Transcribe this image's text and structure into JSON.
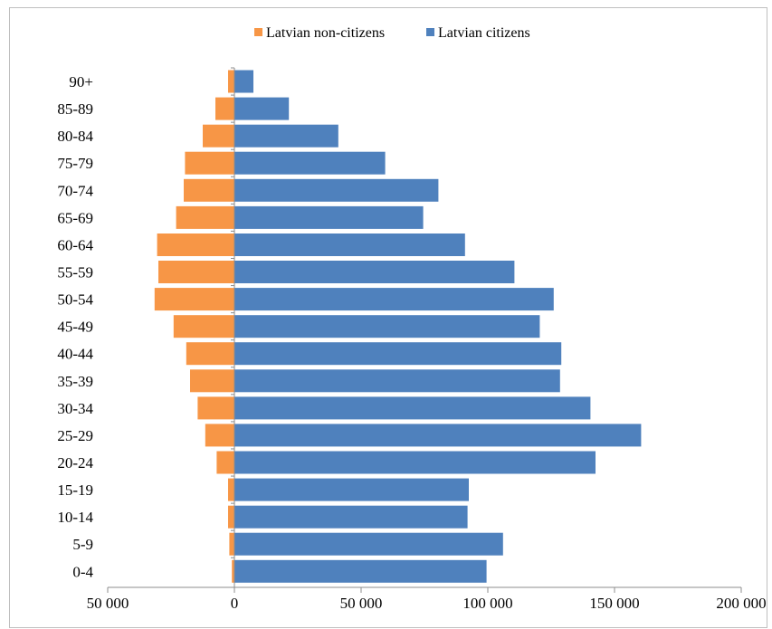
{
  "chart_data": {
    "type": "bar",
    "orientation": "horizontal",
    "categories": [
      "0-4",
      "5-9",
      "10-14",
      "15-19",
      "20-24",
      "25-29",
      "30-34",
      "35-39",
      "40-44",
      "45-49",
      "50-54",
      "55-59",
      "60-64",
      "65-69",
      "70-74",
      "75-79",
      "80-84",
      "85-89",
      "90+"
    ],
    "series": [
      {
        "name": "Latvian non-citizens",
        "color": "#F79646",
        "values": [
          -1000,
          -2000,
          -2500,
          -2500,
          -7000,
          -11500,
          -14500,
          -17500,
          -19000,
          -24000,
          -31500,
          -30000,
          -30500,
          -23000,
          -20000,
          -19500,
          -12500,
          -7500,
          -2500
        ]
      },
      {
        "name": "Latvian citizens",
        "color": "#4F81BD",
        "values": [
          99500,
          106000,
          92000,
          92500,
          142500,
          160500,
          140500,
          128500,
          129000,
          120500,
          126000,
          110500,
          91000,
          74500,
          80500,
          59500,
          41000,
          21500,
          7500
        ]
      }
    ],
    "xticks": [
      {
        "value": -50000,
        "label": "50 000"
      },
      {
        "value": 0,
        "label": "0"
      },
      {
        "value": 50000,
        "label": "50 000"
      },
      {
        "value": 100000,
        "label": "100 000"
      },
      {
        "value": 150000,
        "label": "150 000"
      },
      {
        "value": 200000,
        "label": "200 000"
      }
    ],
    "xlim": [
      -50000,
      200000
    ],
    "grid": false,
    "legend": "top",
    "title": "",
    "xlabel": "",
    "ylabel": ""
  }
}
